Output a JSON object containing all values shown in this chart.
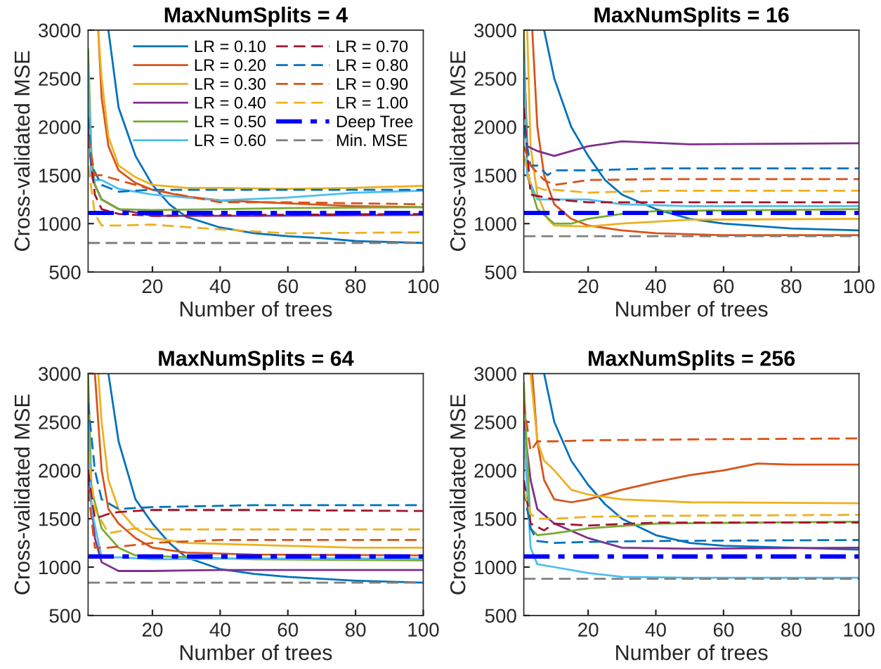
{
  "chart_data": [
    {
      "type": "line",
      "title": "MaxNumSplits = 4",
      "xlabel": "Number of trees",
      "ylabel": "Cross-validated MSE",
      "xlim": [
        1,
        100
      ],
      "ylim": [
        500,
        3000
      ],
      "xticks": [
        20,
        40,
        60,
        80,
        100
      ],
      "yticks": [
        500,
        1000,
        1500,
        2000,
        2500,
        3000
      ],
      "legend": "top right",
      "series": [
        {
          "name": "LR = 0.10",
          "color": "#0072bd",
          "line_style": "solid",
          "x": [
            7,
            10,
            15,
            20,
            25,
            30,
            40,
            50,
            60,
            70,
            80,
            100
          ],
          "values": [
            3000,
            2200,
            1700,
            1400,
            1200,
            1070,
            960,
            900,
            870,
            850,
            820,
            800
          ]
        },
        {
          "name": "LR = 0.20",
          "color": "#d95319",
          "line_style": "solid",
          "x": [
            4,
            5,
            7,
            10,
            15,
            20,
            30,
            40,
            60,
            80,
            100
          ],
          "values": [
            3000,
            2300,
            1800,
            1550,
            1420,
            1350,
            1280,
            1240,
            1210,
            1180,
            1170
          ]
        },
        {
          "name": "LR = 0.30",
          "color": "#edb120",
          "line_style": "solid",
          "x": [
            4,
            5,
            7,
            10,
            15,
            20,
            30,
            40,
            60,
            80,
            100
          ],
          "values": [
            3000,
            2500,
            1900,
            1600,
            1480,
            1400,
            1370,
            1370,
            1360,
            1370,
            1390
          ]
        },
        {
          "name": "LR = 0.40",
          "color": "#7e2f8e",
          "line_style": "solid",
          "x": [
            1,
            2,
            3,
            5,
            10,
            20,
            30,
            50,
            100
          ],
          "values": [
            2200,
            1500,
            1400,
            1250,
            1150,
            1080,
            1080,
            1080,
            1090
          ]
        },
        {
          "name": "LR = 0.50",
          "color": "#77ac30",
          "line_style": "solid",
          "x": [
            1,
            2,
            3,
            5,
            10,
            20,
            40,
            60,
            100
          ],
          "values": [
            2800,
            1700,
            1400,
            1250,
            1150,
            1140,
            1150,
            1160,
            1170
          ]
        },
        {
          "name": "LR = 0.60",
          "color": "#4dbeee",
          "line_style": "solid",
          "x": [
            1,
            2,
            3,
            5,
            10,
            20,
            40,
            60,
            80,
            100
          ],
          "values": [
            2600,
            1500,
            1450,
            1450,
            1360,
            1300,
            1240,
            1270,
            1320,
            1340
          ]
        },
        {
          "name": "LR = 0.70",
          "color": "#a2142f",
          "line_style": "dashed",
          "x": [
            1,
            3,
            5,
            10,
            20,
            50,
            100
          ],
          "values": [
            1900,
            1300,
            1150,
            1100,
            1080,
            1090,
            1100
          ]
        },
        {
          "name": "LR = 0.80",
          "color": "#0072bd",
          "line_style": "dashed",
          "x": [
            1,
            2,
            5,
            10,
            20,
            40,
            60,
            100
          ],
          "values": [
            2100,
            1600,
            1400,
            1330,
            1350,
            1350,
            1350,
            1350
          ]
        },
        {
          "name": "LR = 0.90",
          "color": "#d95319",
          "line_style": "dashed",
          "x": [
            1,
            3,
            5,
            10,
            20,
            40,
            60,
            100
          ],
          "values": [
            1900,
            1500,
            1500,
            1450,
            1350,
            1220,
            1220,
            1200
          ]
        },
        {
          "name": "LR = 1.00",
          "color": "#edb120",
          "line_style": "dashed",
          "x": [
            1,
            3,
            5,
            10,
            20,
            40,
            60,
            100
          ],
          "values": [
            1600,
            1100,
            980,
            980,
            990,
            940,
            900,
            910
          ]
        }
      ],
      "ref_lines": [
        {
          "axis": "y",
          "value": 1110,
          "label": "Deep Tree",
          "color": "#0000ff",
          "line_style": "dashdot"
        },
        {
          "axis": "y",
          "value": 800,
          "label": "Min. MSE",
          "color": "#808080",
          "line_style": "dashed"
        }
      ]
    },
    {
      "type": "line",
      "title": "MaxNumSplits = 16",
      "xlabel": "Number of trees",
      "ylabel": "Cross-validated MSE",
      "xlim": [
        1,
        100
      ],
      "ylim": [
        500,
        3000
      ],
      "xticks": [
        20,
        40,
        60,
        80,
        100
      ],
      "yticks": [
        500,
        1000,
        1500,
        2000,
        2500,
        3000
      ],
      "series": [
        {
          "color": "#0072bd",
          "line_style": "solid",
          "x": [
            7,
            10,
            15,
            20,
            25,
            30,
            40,
            50,
            60,
            80,
            100
          ],
          "values": [
            3000,
            2500,
            2000,
            1700,
            1450,
            1300,
            1150,
            1050,
            1000,
            950,
            930
          ]
        },
        {
          "color": "#d95319",
          "line_style": "solid",
          "x": [
            3.5,
            5,
            7,
            10,
            15,
            20,
            30,
            40,
            60,
            100
          ],
          "values": [
            3000,
            2000,
            1500,
            1200,
            1050,
            980,
            930,
            900,
            880,
            880
          ]
        },
        {
          "color": "#edb120",
          "line_style": "solid",
          "x": [
            2,
            3,
            5,
            8,
            10,
            20,
            30,
            50,
            100
          ],
          "values": [
            3000,
            1800,
            1300,
            1050,
            980,
            970,
            1000,
            1040,
            1050
          ]
        },
        {
          "color": "#7e2f8e",
          "line_style": "solid",
          "x": [
            1,
            2,
            5,
            10,
            20,
            30,
            50,
            100
          ],
          "values": [
            2800,
            1800,
            1750,
            1700,
            1800,
            1850,
            1820,
            1830
          ]
        },
        {
          "color": "#77ac30",
          "line_style": "solid",
          "x": [
            1,
            2,
            5,
            10,
            15,
            20,
            30,
            40,
            100
          ],
          "values": [
            3000,
            1500,
            1150,
            1000,
            1000,
            1050,
            1100,
            1130,
            1150
          ]
        },
        {
          "color": "#4dbeee",
          "line_style": "solid",
          "x": [
            1,
            2,
            5,
            10,
            20,
            30,
            50,
            100
          ],
          "values": [
            2700,
            1500,
            1250,
            1250,
            1250,
            1200,
            1180,
            1180
          ]
        },
        {
          "color": "#a2142f",
          "line_style": "dashed",
          "x": [
            1,
            3,
            10,
            20,
            40,
            100
          ],
          "values": [
            2200,
            1300,
            1250,
            1220,
            1220,
            1220
          ]
        },
        {
          "color": "#0072bd",
          "line_style": "dashed",
          "x": [
            1,
            3,
            5,
            8,
            10,
            20,
            40,
            100
          ],
          "values": [
            2000,
            1600,
            1600,
            1500,
            1550,
            1550,
            1570,
            1570
          ]
        },
        {
          "color": "#d95319",
          "line_style": "dashed",
          "x": [
            1,
            3,
            7,
            10,
            20,
            40,
            100
          ],
          "values": [
            1800,
            1600,
            1450,
            1400,
            1450,
            1460,
            1460
          ]
        },
        {
          "color": "#edb120",
          "line_style": "dashed",
          "x": [
            1,
            3,
            7,
            10,
            20,
            40,
            100
          ],
          "values": [
            1700,
            1400,
            1350,
            1350,
            1320,
            1340,
            1340
          ]
        }
      ],
      "ref_lines": [
        {
          "axis": "y",
          "value": 1110,
          "color": "#0000ff",
          "line_style": "dashdot"
        },
        {
          "axis": "y",
          "value": 870,
          "color": "#808080",
          "line_style": "dashed"
        }
      ]
    },
    {
      "type": "line",
      "title": "MaxNumSplits = 64",
      "xlabel": "Number of trees",
      "ylabel": "Cross-validated MSE",
      "xlim": [
        1,
        100
      ],
      "ylim": [
        500,
        3000
      ],
      "xticks": [
        20,
        40,
        60,
        80,
        100
      ],
      "yticks": [
        500,
        1000,
        1500,
        2000,
        2500,
        3000
      ],
      "series": [
        {
          "color": "#0072bd",
          "line_style": "solid",
          "x": [
            7,
            10,
            15,
            20,
            25,
            30,
            40,
            50,
            60,
            80,
            100
          ],
          "values": [
            3000,
            2300,
            1700,
            1450,
            1250,
            1100,
            980,
            930,
            900,
            860,
            840
          ]
        },
        {
          "color": "#d95319",
          "line_style": "solid",
          "x": [
            3,
            5,
            7,
            10,
            15,
            20,
            30,
            50,
            100
          ],
          "values": [
            3000,
            2000,
            1600,
            1450,
            1300,
            1200,
            1150,
            1130,
            1120
          ]
        },
        {
          "color": "#edb120",
          "line_style": "solid",
          "x": [
            4,
            5,
            7,
            10,
            15,
            20,
            30,
            50,
            80,
            100
          ],
          "values": [
            3000,
            2500,
            1900,
            1600,
            1400,
            1300,
            1250,
            1230,
            1200,
            1200
          ]
        },
        {
          "color": "#7e2f8e",
          "line_style": "solid",
          "x": [
            1,
            3,
            5,
            10,
            20,
            40,
            100
          ],
          "values": [
            2000,
            1300,
            1050,
            960,
            960,
            970,
            970
          ]
        },
        {
          "color": "#77ac30",
          "line_style": "solid",
          "x": [
            1,
            2,
            5,
            10,
            15,
            50,
            100
          ],
          "values": [
            3000,
            1800,
            1400,
            1200,
            1120,
            1080,
            1070
          ]
        },
        {
          "color": "#4dbeee",
          "line_style": "solid",
          "x": [
            1,
            2,
            5,
            10,
            20,
            50,
            100
          ],
          "values": [
            2500,
            1600,
            1100,
            1100,
            1080,
            1090,
            1090
          ]
        },
        {
          "color": "#a2142f",
          "line_style": "dashed",
          "x": [
            1,
            3,
            7,
            10,
            20,
            50,
            100
          ],
          "values": [
            2000,
            1500,
            1550,
            1570,
            1590,
            1590,
            1580
          ]
        },
        {
          "color": "#0072bd",
          "line_style": "dashed",
          "x": [
            1,
            3,
            5,
            10,
            20,
            50,
            100
          ],
          "values": [
            2700,
            2000,
            1700,
            1600,
            1620,
            1640,
            1640
          ]
        },
        {
          "color": "#d95319",
          "line_style": "dashed",
          "x": [
            1,
            3,
            7,
            15,
            20,
            40,
            100
          ],
          "values": [
            1800,
            1200,
            1200,
            1230,
            1250,
            1280,
            1280
          ]
        },
        {
          "color": "#edb120",
          "line_style": "dashed",
          "x": [
            1,
            3,
            7,
            15,
            20,
            50,
            100
          ],
          "values": [
            2200,
            1600,
            1350,
            1400,
            1390,
            1390,
            1390
          ]
        }
      ],
      "ref_lines": [
        {
          "axis": "y",
          "value": 1110,
          "color": "#0000ff",
          "line_style": "dashdot"
        },
        {
          "axis": "y",
          "value": 840,
          "color": "#808080",
          "line_style": "dashed"
        }
      ]
    },
    {
      "type": "line",
      "title": "MaxNumSplits = 256",
      "xlabel": "Number of trees",
      "ylabel": "Cross-validated MSE",
      "xlim": [
        1,
        100
      ],
      "ylim": [
        500,
        3000
      ],
      "xticks": [
        20,
        40,
        60,
        80,
        100
      ],
      "yticks": [
        500,
        1000,
        1500,
        2000,
        2500,
        3000
      ],
      "series": [
        {
          "color": "#0072bd",
          "line_style": "solid",
          "x": [
            7,
            10,
            15,
            20,
            25,
            30,
            40,
            50,
            60,
            80,
            100
          ],
          "values": [
            3000,
            2500,
            2100,
            1850,
            1650,
            1500,
            1330,
            1250,
            1220,
            1200,
            1180
          ]
        },
        {
          "color": "#d95319",
          "line_style": "solid",
          "x": [
            3.5,
            5,
            7,
            10,
            15,
            20,
            30,
            40,
            50,
            60,
            70,
            80,
            100
          ],
          "values": [
            3000,
            2300,
            1900,
            1700,
            1670,
            1700,
            1800,
            1880,
            1950,
            2000,
            2070,
            2060,
            2060
          ]
        },
        {
          "color": "#edb120",
          "line_style": "solid",
          "x": [
            3,
            5,
            7,
            10,
            15,
            20,
            30,
            50,
            100
          ],
          "values": [
            3000,
            2300,
            2100,
            2000,
            1800,
            1750,
            1700,
            1670,
            1660
          ]
        },
        {
          "color": "#7e2f8e",
          "line_style": "solid",
          "x": [
            1,
            3,
            5,
            10,
            20,
            30,
            50,
            100
          ],
          "values": [
            2500,
            1900,
            1600,
            1450,
            1300,
            1200,
            1190,
            1200
          ]
        },
        {
          "color": "#77ac30",
          "line_style": "solid",
          "x": [
            1,
            3,
            5,
            10,
            20,
            40,
            100
          ],
          "values": [
            2900,
            1400,
            1330,
            1350,
            1400,
            1450,
            1470
          ]
        },
        {
          "color": "#4dbeee",
          "line_style": "solid",
          "x": [
            1,
            3,
            5,
            10,
            20,
            30,
            50,
            100
          ],
          "values": [
            2400,
            1200,
            1030,
            1000,
            940,
            900,
            890,
            890
          ]
        },
        {
          "color": "#a2142f",
          "line_style": "dashed",
          "x": [
            1,
            3,
            7,
            10,
            20,
            40,
            100
          ],
          "values": [
            1900,
            1450,
            1380,
            1450,
            1430,
            1460,
            1460
          ]
        },
        {
          "color": "#0072bd",
          "line_style": "dashed",
          "x": [
            1,
            3,
            5,
            10,
            20,
            40,
            100
          ],
          "values": [
            1800,
            1400,
            1270,
            1250,
            1260,
            1270,
            1280
          ]
        },
        {
          "color": "#d95319",
          "line_style": "dashed",
          "x": [
            1,
            3,
            5,
            10,
            20,
            50,
            100
          ],
          "values": [
            2700,
            2200,
            2300,
            2300,
            2310,
            2320,
            2330
          ]
        },
        {
          "color": "#edb120",
          "line_style": "dashed",
          "x": [
            1,
            3,
            5,
            10,
            20,
            40,
            100
          ],
          "values": [
            1800,
            1550,
            1500,
            1500,
            1520,
            1530,
            1540
          ]
        }
      ],
      "ref_lines": [
        {
          "axis": "y",
          "value": 1110,
          "color": "#0000ff",
          "line_style": "dashdot"
        },
        {
          "axis": "y",
          "value": 880,
          "color": "#808080",
          "line_style": "dashed"
        }
      ]
    }
  ]
}
